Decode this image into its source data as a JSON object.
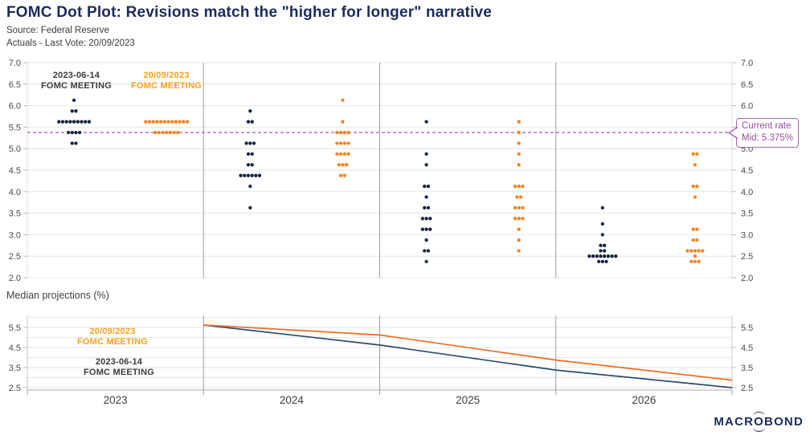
{
  "header": {
    "title": "FOMC Dot Plot: Revisions match the \"higher for longer\" narrative",
    "source": "Source: Federal Reserve",
    "actuals": "Actuals - Last Vote: 20/09/2023"
  },
  "colors": {
    "navy_dot": "#15233F",
    "navy_line": "#2B4A6F",
    "orange_dot": "#F58220",
    "orange_line": "#F26B21",
    "orange_label": "#F9A01B",
    "dark_label": "#3A3A3A",
    "purple": "#A558A8",
    "grid": "#E6E6E6",
    "separator": "#9E9E9E",
    "axis_text": "#4A4A4A",
    "title_navy": "#1B2C5B"
  },
  "chart_data": [
    {
      "type": "scatter",
      "subtype": "fomc-dot-plot",
      "categories": [
        "2023",
        "2024",
        "2025",
        "2026"
      ],
      "ylim": [
        2.0,
        7.0
      ],
      "yticks": [
        "7.0",
        "6.5",
        "6.0",
        "5.5",
        "5.0",
        "4.5",
        "4.0",
        "3.5",
        "3.0",
        "2.5",
        "2.0"
      ],
      "grid": "horizontal every 0.5, axis labels both sides",
      "reference_line": {
        "value": 5.375,
        "label_line1": "Current rate",
        "label_line2": "Mid: 5.375%"
      },
      "annotations": [
        {
          "line1": "2023-06-14",
          "line2": "FOMC MEETING",
          "color": "#3A3A3A"
        },
        {
          "line1": "20/09/2023",
          "line2": "FOMC MEETING",
          "color": "#F9A01B"
        }
      ],
      "series": [
        {
          "name": "2023-06-14 FOMC MEETING",
          "color": "#15233F",
          "dots": {
            "2023": [
              [
                6.125,
                1
              ],
              [
                5.875,
                2
              ],
              [
                5.625,
                9
              ],
              [
                5.375,
                4
              ],
              [
                5.125,
                2
              ]
            ],
            "2024": [
              [
                5.875,
                1
              ],
              [
                5.625,
                2
              ],
              [
                5.125,
                3
              ],
              [
                4.875,
                2
              ],
              [
                4.625,
                2
              ],
              [
                4.375,
                6
              ],
              [
                4.125,
                1
              ],
              [
                3.625,
                1
              ]
            ],
            "2025": [
              [
                5.625,
                1
              ],
              [
                4.875,
                1
              ],
              [
                4.625,
                1
              ],
              [
                4.125,
                2
              ],
              [
                3.875,
                1
              ],
              [
                3.625,
                2
              ],
              [
                3.375,
                3
              ],
              [
                3.125,
                3
              ],
              [
                2.875,
                1
              ],
              [
                2.625,
                2
              ],
              [
                2.375,
                1
              ]
            ],
            "2026": [
              [
                3.625,
                1
              ],
              [
                3.25,
                1
              ],
              [
                3.0,
                1
              ],
              [
                2.75,
                2
              ],
              [
                2.625,
                2
              ],
              [
                2.5,
                8
              ],
              [
                2.375,
                3
              ]
            ]
          }
        },
        {
          "name": "20/09/2023 FOMC MEETING",
          "color": "#F58220",
          "dots": {
            "2023": [
              [
                5.625,
                12
              ],
              [
                5.375,
                7
              ]
            ],
            "2024": [
              [
                6.125,
                1
              ],
              [
                5.625,
                1
              ],
              [
                5.375,
                4
              ],
              [
                5.125,
                4
              ],
              [
                4.875,
                4
              ],
              [
                4.625,
                3
              ],
              [
                4.375,
                2
              ]
            ],
            "2025": [
              [
                5.625,
                1
              ],
              [
                5.375,
                1
              ],
              [
                5.125,
                1
              ],
              [
                4.875,
                1
              ],
              [
                4.625,
                1
              ],
              [
                4.125,
                3
              ],
              [
                3.875,
                2
              ],
              [
                3.625,
                3
              ],
              [
                3.375,
                3
              ],
              [
                3.125,
                1
              ],
              [
                2.875,
                1
              ],
              [
                2.625,
                1
              ]
            ],
            "2026": [
              [
                4.875,
                2
              ],
              [
                4.625,
                1
              ],
              [
                4.125,
                2
              ],
              [
                3.875,
                1
              ],
              [
                3.125,
                2
              ],
              [
                2.875,
                2
              ],
              [
                2.625,
                5
              ],
              [
                2.5,
                1
              ],
              [
                2.375,
                3
              ]
            ]
          }
        }
      ]
    },
    {
      "type": "line",
      "title": "Median projections (%)",
      "categories": [
        "2023",
        "2024",
        "2025",
        "2026"
      ],
      "ylim": [
        2.4,
        6.1
      ],
      "yticks": [
        "5.5",
        "4.5",
        "3.5",
        "2.5"
      ],
      "grid": "horizontal every 0.5, axis labels both sides",
      "annotations": [
        {
          "line1": "20/09/2023",
          "line2": "FOMC MEETING",
          "color": "#F9A01B"
        },
        {
          "line1": "2023-06-14",
          "line2": "FOMC MEETING",
          "color": "#3A3A3A"
        }
      ],
      "series": [
        {
          "name": "2023-06-14 FOMC MEETING",
          "color": "#2B4A6F",
          "values": [
            5.625,
            4.625,
            3.375,
            2.5
          ]
        },
        {
          "name": "20/09/2023 FOMC MEETING",
          "color": "#F26B21",
          "values": [
            5.625,
            5.125,
            3.875,
            2.875
          ]
        }
      ]
    }
  ],
  "footer": {
    "logo_text": "MACROBOND"
  }
}
